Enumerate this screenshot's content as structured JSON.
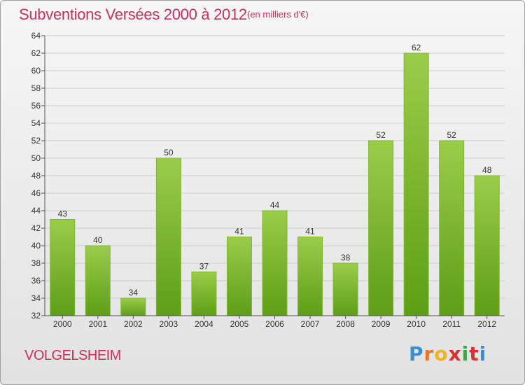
{
  "header": {
    "title": "Subventions Versées 2000 à 2012",
    "unit": "(en milliers d'€)"
  },
  "footer": {
    "place": "VOLGELSHEIM",
    "brand": "Proxiti",
    "brand_letters": [
      "P",
      "r",
      "o",
      "x",
      "i",
      "t",
      "i"
    ],
    "brand_colors": [
      "#3a8fd0",
      "#e6762b",
      "#f0b323",
      "#d8322f",
      "#3aa64a",
      "#d8322f",
      "#3a8fd0"
    ]
  },
  "colors": {
    "title": "#c8325a",
    "bar_top": "#9acc4a",
    "bar_bottom": "#5e9e16",
    "grid": "#cccccc"
  },
  "chart_data": {
    "type": "bar",
    "title": "Subventions Versées 2000 à 2012",
    "subtitle": "(en milliers d'€)",
    "categories": [
      "2000",
      "2001",
      "2002",
      "2003",
      "2004",
      "2005",
      "2006",
      "2007",
      "2008",
      "2009",
      "2010",
      "2011",
      "2012"
    ],
    "values": [
      43,
      40,
      34,
      50,
      37,
      41,
      44,
      41,
      38,
      52,
      62,
      52,
      48
    ],
    "ylim": [
      32,
      64
    ],
    "yticks": [
      32,
      34,
      36,
      38,
      40,
      42,
      44,
      46,
      48,
      50,
      52,
      54,
      56,
      58,
      60,
      62,
      64
    ],
    "xlabel": "",
    "ylabel": "",
    "grid": true,
    "data_labels": true
  }
}
